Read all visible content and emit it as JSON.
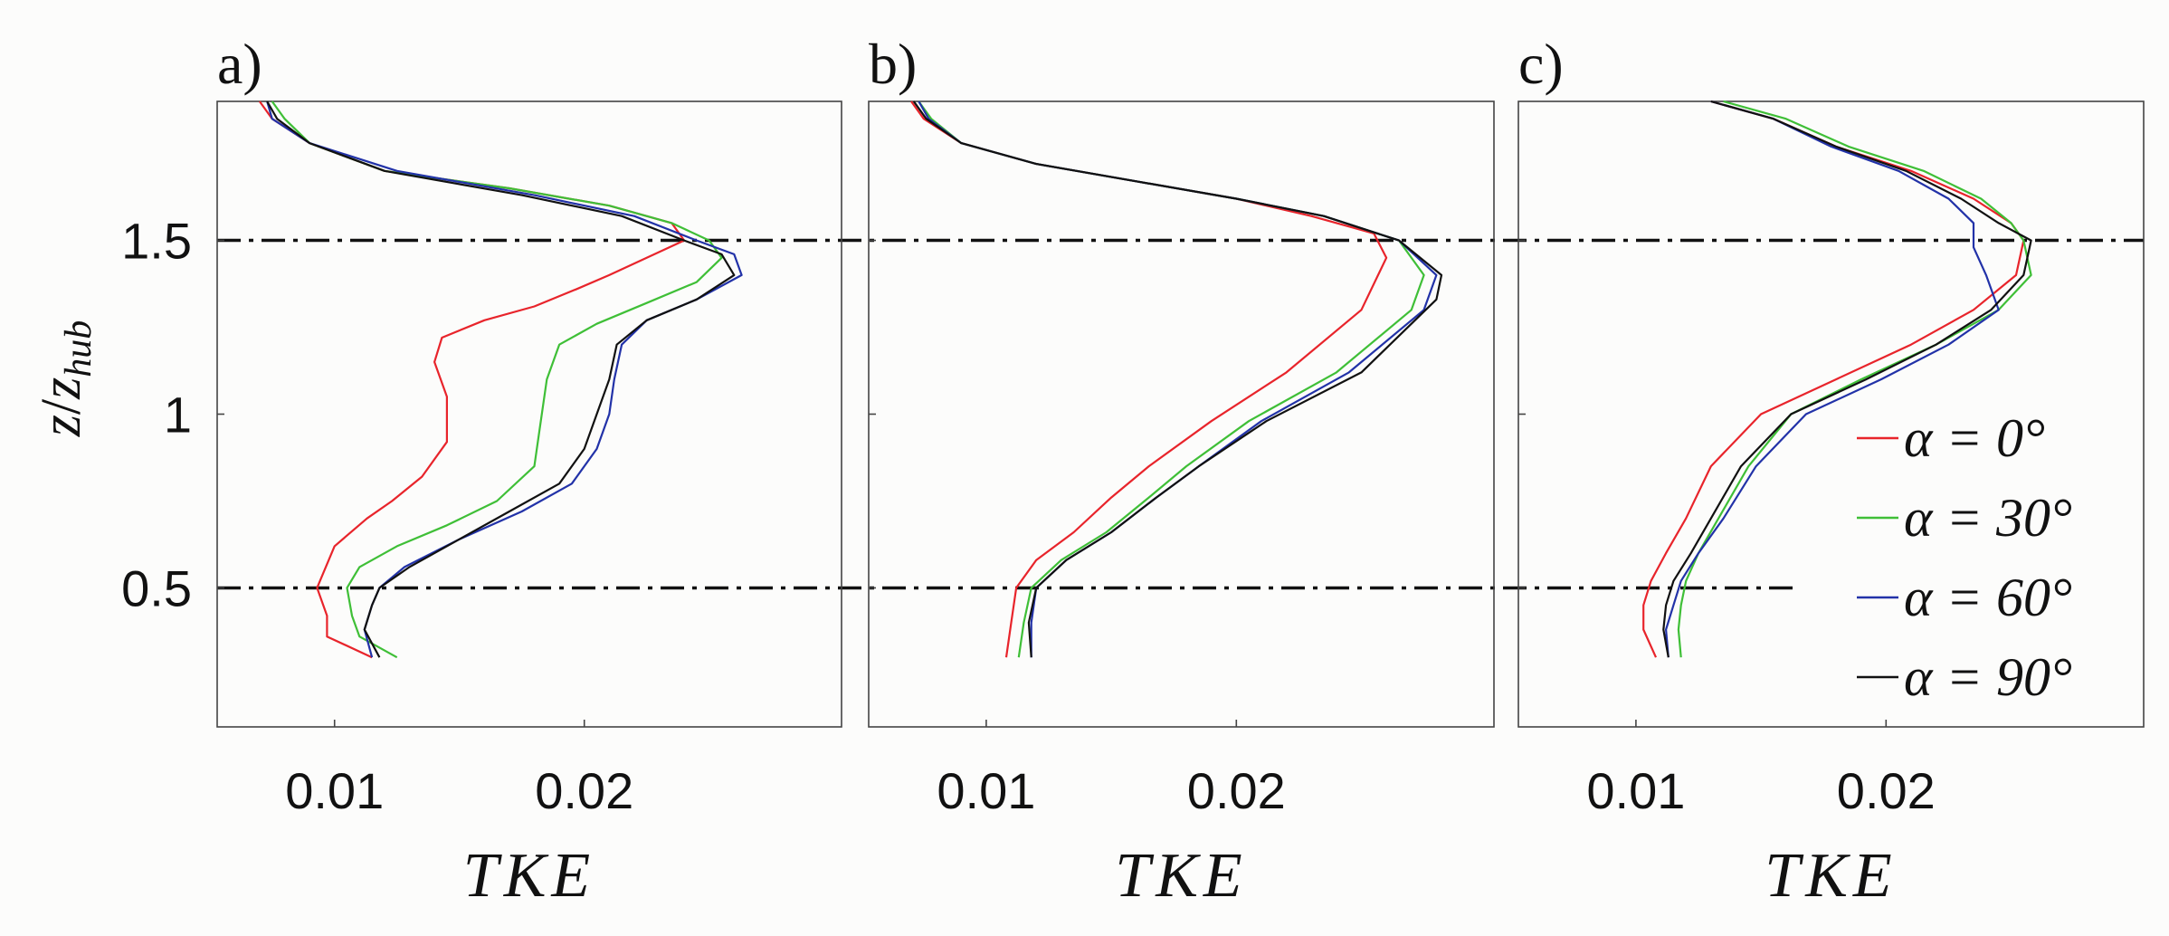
{
  "chart_data": [
    {
      "type": "line",
      "panel_label": "a)",
      "xlabel": "TKE",
      "ylabel": "z/z_hub",
      "ylabel_main": "z",
      "ylabel_sep": "/",
      "ylabel_var": "z",
      "ylabel_sub": "hub",
      "xlim": [
        0.0053,
        0.0303
      ],
      "ylim": [
        0.1,
        1.9
      ],
      "xticks": [
        0.01,
        0.02
      ],
      "xtick_labels": [
        "0.01",
        "0.02"
      ],
      "yticks": [
        0.5,
        1,
        1.5
      ],
      "ytick_labels": [
        "0.5",
        "1",
        "1.5"
      ],
      "reference_lines_y": [
        0.5,
        1.5
      ],
      "series": [
        {
          "name": "α = 0°",
          "color": "#e8242b",
          "x": [
            0.0115,
            0.0097,
            0.0097,
            0.0093,
            0.01,
            0.0113,
            0.0123,
            0.0135,
            0.0145,
            0.0145,
            0.014,
            0.0143,
            0.016,
            0.018,
            0.0197,
            0.021,
            0.0225,
            0.024,
            0.0235,
            0.021,
            0.017,
            0.012,
            0.009,
            0.0075,
            0.007
          ],
          "y": [
            0.3,
            0.36,
            0.42,
            0.5,
            0.62,
            0.7,
            0.75,
            0.82,
            0.92,
            1.05,
            1.15,
            1.22,
            1.27,
            1.31,
            1.36,
            1.4,
            1.45,
            1.5,
            1.55,
            1.6,
            1.65,
            1.7,
            1.78,
            1.85,
            1.9
          ]
        },
        {
          "name": "α = 30°",
          "color": "#3fbf37",
          "x": [
            0.0125,
            0.011,
            0.0107,
            0.0105,
            0.011,
            0.0125,
            0.0145,
            0.0165,
            0.018,
            0.0182,
            0.0185,
            0.019,
            0.0205,
            0.0225,
            0.0245,
            0.0255,
            0.025,
            0.0235,
            0.021,
            0.017,
            0.012,
            0.009,
            0.008,
            0.0075
          ],
          "y": [
            0.3,
            0.36,
            0.42,
            0.5,
            0.56,
            0.62,
            0.68,
            0.75,
            0.85,
            0.95,
            1.1,
            1.2,
            1.26,
            1.32,
            1.38,
            1.45,
            1.5,
            1.55,
            1.6,
            1.65,
            1.7,
            1.78,
            1.85,
            1.9
          ]
        },
        {
          "name": "α = 60°",
          "color": "#2232a8",
          "x": [
            0.0115,
            0.0112,
            0.0115,
            0.0118,
            0.0128,
            0.015,
            0.0175,
            0.0195,
            0.0205,
            0.021,
            0.0212,
            0.0215,
            0.0225,
            0.0245,
            0.0263,
            0.026,
            0.0245,
            0.022,
            0.018,
            0.0125,
            0.009,
            0.0075,
            0.0073
          ],
          "y": [
            0.3,
            0.38,
            0.45,
            0.5,
            0.56,
            0.64,
            0.72,
            0.8,
            0.9,
            1.0,
            1.1,
            1.2,
            1.27,
            1.33,
            1.4,
            1.46,
            1.5,
            1.57,
            1.63,
            1.7,
            1.78,
            1.85,
            1.9
          ]
        },
        {
          "name": "α = 90°",
          "color": "#111111",
          "x": [
            0.0118,
            0.0112,
            0.0115,
            0.0118,
            0.013,
            0.015,
            0.017,
            0.019,
            0.02,
            0.0205,
            0.021,
            0.0213,
            0.0225,
            0.0245,
            0.026,
            0.0255,
            0.024,
            0.0215,
            0.0175,
            0.012,
            0.009,
            0.0077,
            0.0073
          ],
          "y": [
            0.3,
            0.38,
            0.45,
            0.5,
            0.56,
            0.64,
            0.72,
            0.8,
            0.9,
            1.0,
            1.1,
            1.2,
            1.27,
            1.33,
            1.4,
            1.46,
            1.5,
            1.57,
            1.63,
            1.7,
            1.78,
            1.85,
            1.9
          ]
        }
      ]
    },
    {
      "type": "line",
      "panel_label": "b)",
      "xlabel": "TKE",
      "xlim": [
        0.0053,
        0.0303
      ],
      "ylim": [
        0.1,
        1.9
      ],
      "xticks": [
        0.01,
        0.02
      ],
      "xtick_labels": [
        "0.01",
        "0.02"
      ],
      "reference_lines_y": [
        0.5,
        1.5
      ],
      "series": [
        {
          "name": "α = 0°",
          "color": "#e8242b",
          "x": [
            0.0108,
            0.011,
            0.0112,
            0.012,
            0.0135,
            0.015,
            0.0165,
            0.019,
            0.022,
            0.025,
            0.026,
            0.0255,
            0.023,
            0.02,
            0.016,
            0.012,
            0.009,
            0.0075,
            0.007
          ],
          "y": [
            0.3,
            0.4,
            0.5,
            0.58,
            0.66,
            0.76,
            0.85,
            0.98,
            1.12,
            1.3,
            1.45,
            1.52,
            1.57,
            1.62,
            1.67,
            1.72,
            1.78,
            1.85,
            1.9
          ]
        },
        {
          "name": "α = 30°",
          "color": "#3fbf37",
          "x": [
            0.0113,
            0.0115,
            0.0118,
            0.013,
            0.0148,
            0.0165,
            0.018,
            0.0205,
            0.024,
            0.027,
            0.0275,
            0.0265,
            0.0235,
            0.02,
            0.016,
            0.012,
            0.009,
            0.0078,
            0.0073
          ],
          "y": [
            0.3,
            0.4,
            0.5,
            0.58,
            0.66,
            0.76,
            0.85,
            0.98,
            1.12,
            1.3,
            1.4,
            1.5,
            1.57,
            1.62,
            1.67,
            1.72,
            1.78,
            1.85,
            1.9
          ]
        },
        {
          "name": "α = 60°",
          "color": "#2232a8",
          "x": [
            0.0118,
            0.0118,
            0.012,
            0.0132,
            0.015,
            0.0168,
            0.0185,
            0.021,
            0.0245,
            0.0275,
            0.028,
            0.0265,
            0.0235,
            0.02,
            0.016,
            0.012,
            0.009,
            0.0077,
            0.0073
          ],
          "y": [
            0.3,
            0.4,
            0.5,
            0.58,
            0.66,
            0.76,
            0.85,
            0.98,
            1.12,
            1.3,
            1.4,
            1.5,
            1.57,
            1.62,
            1.67,
            1.72,
            1.78,
            1.85,
            1.9
          ]
        },
        {
          "name": "α = 90°",
          "color": "#111111",
          "x": [
            0.0118,
            0.0117,
            0.012,
            0.0132,
            0.015,
            0.0168,
            0.0185,
            0.0212,
            0.025,
            0.028,
            0.0282,
            0.0265,
            0.0235,
            0.02,
            0.016,
            0.012,
            0.009,
            0.0076,
            0.0071
          ],
          "y": [
            0.3,
            0.4,
            0.5,
            0.58,
            0.66,
            0.76,
            0.85,
            0.98,
            1.12,
            1.33,
            1.4,
            1.5,
            1.57,
            1.62,
            1.67,
            1.72,
            1.78,
            1.85,
            1.9
          ]
        }
      ]
    },
    {
      "type": "line",
      "panel_label": "c)",
      "xlabel": "TKE",
      "xlim": [
        0.0053,
        0.0303
      ],
      "ylim": [
        0.1,
        1.9
      ],
      "xticks": [
        0.01,
        0.02
      ],
      "xtick_labels": [
        "0.01",
        "0.02"
      ],
      "reference_lines_y": [
        0.5,
        1.5
      ],
      "legend_location": "lower-right",
      "legend": [
        "α = 0°",
        "α = 30°",
        "α = 60°",
        "α = 90°"
      ],
      "series": [
        {
          "name": "α = 0°",
          "color": "#e8242b",
          "x": [
            0.0108,
            0.0103,
            0.0103,
            0.0106,
            0.0112,
            0.012,
            0.013,
            0.015,
            0.018,
            0.021,
            0.0235,
            0.0252,
            0.0255,
            0.025,
            0.0235,
            0.021,
            0.018,
            0.0155,
            0.013
          ],
          "y": [
            0.3,
            0.38,
            0.45,
            0.52,
            0.6,
            0.7,
            0.85,
            1.0,
            1.1,
            1.2,
            1.3,
            1.4,
            1.5,
            1.55,
            1.62,
            1.7,
            1.77,
            1.85,
            1.9
          ]
        },
        {
          "name": "α = 30°",
          "color": "#3fbf37",
          "x": [
            0.0118,
            0.0117,
            0.0118,
            0.012,
            0.0125,
            0.0133,
            0.0145,
            0.0162,
            0.019,
            0.022,
            0.0245,
            0.0258,
            0.0255,
            0.025,
            0.0238,
            0.0215,
            0.0185,
            0.016,
            0.0135
          ],
          "y": [
            0.3,
            0.38,
            0.45,
            0.52,
            0.6,
            0.7,
            0.85,
            1.0,
            1.1,
            1.2,
            1.3,
            1.4,
            1.5,
            1.55,
            1.62,
            1.7,
            1.77,
            1.85,
            1.9
          ]
        },
        {
          "name": "α = 60°",
          "color": "#2232a8",
          "x": [
            0.0113,
            0.0112,
            0.0115,
            0.0118,
            0.0125,
            0.0135,
            0.0148,
            0.0168,
            0.0198,
            0.0225,
            0.0245,
            0.024,
            0.0235,
            0.0235,
            0.0225,
            0.0205,
            0.0178,
            0.0155,
            0.013
          ],
          "y": [
            0.3,
            0.38,
            0.45,
            0.52,
            0.6,
            0.7,
            0.85,
            1.0,
            1.1,
            1.2,
            1.3,
            1.4,
            1.48,
            1.55,
            1.62,
            1.7,
            1.77,
            1.85,
            1.9
          ]
        },
        {
          "name": "α = 90°",
          "color": "#111111",
          "x": [
            0.0113,
            0.0111,
            0.0112,
            0.0115,
            0.0122,
            0.013,
            0.0142,
            0.0162,
            0.0192,
            0.022,
            0.0242,
            0.0255,
            0.0258,
            0.0245,
            0.023,
            0.0208,
            0.018,
            0.0155,
            0.013
          ],
          "y": [
            0.3,
            0.38,
            0.45,
            0.52,
            0.6,
            0.7,
            0.85,
            1.0,
            1.1,
            1.2,
            1.3,
            1.4,
            1.5,
            1.55,
            1.62,
            1.7,
            1.77,
            1.85,
            1.9
          ]
        }
      ]
    }
  ]
}
